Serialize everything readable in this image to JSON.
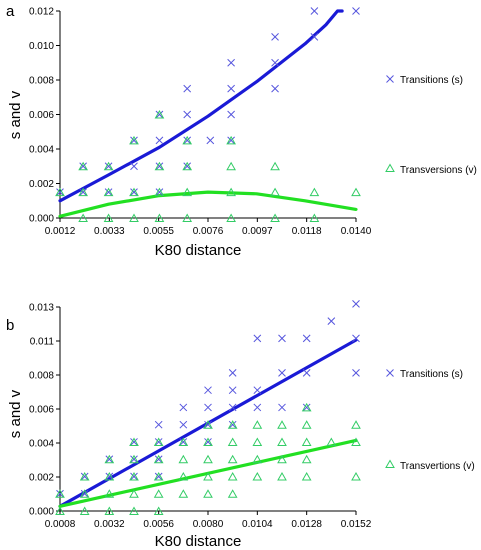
{
  "colors": {
    "transitions": "#5555dd",
    "transversions": "#33cc66",
    "fit_s": "#1a1ad6",
    "fit_v": "#22e022",
    "axis": "#000000"
  },
  "chart_data": [
    {
      "type": "scatter",
      "panel_label": "a",
      "xlabel": "K80 distance",
      "ylabel": "s and v",
      "xlim": [
        0.0012,
        0.014
      ],
      "ylim": [
        0.0,
        0.012
      ],
      "xticks": [
        "0.0012",
        "0.0033",
        "0.0055",
        "0.0076",
        "0.0097",
        "0.0118",
        "0.0140"
      ],
      "yticks": [
        "0.000",
        "0.002",
        "0.004",
        "0.006",
        "0.008",
        "0.010",
        "0.012"
      ],
      "legend_position": "right",
      "grid": false,
      "series": [
        {
          "name": "Transitions (s)",
          "marker": "x",
          "color_key": "transitions",
          "points": [
            [
              0.0012,
              0.0015
            ],
            [
              0.0022,
              0.003
            ],
            [
              0.0022,
              0.0015
            ],
            [
              0.0033,
              0.0015
            ],
            [
              0.0033,
              0.003
            ],
            [
              0.0044,
              0.0015
            ],
            [
              0.0044,
              0.003
            ],
            [
              0.0044,
              0.0045
            ],
            [
              0.0055,
              0.0045
            ],
            [
              0.0055,
              0.006
            ],
            [
              0.0055,
              0.003
            ],
            [
              0.0055,
              0.0015
            ],
            [
              0.0067,
              0.003
            ],
            [
              0.0067,
              0.0045
            ],
            [
              0.0067,
              0.006
            ],
            [
              0.0067,
              0.0075
            ],
            [
              0.0077,
              0.0045
            ],
            [
              0.0086,
              0.0045
            ],
            [
              0.0086,
              0.006
            ],
            [
              0.0086,
              0.0075
            ],
            [
              0.0086,
              0.009
            ],
            [
              0.0105,
              0.009
            ],
            [
              0.0105,
              0.0075
            ],
            [
              0.0105,
              0.0105
            ],
            [
              0.0122,
              0.0105
            ],
            [
              0.0122,
              0.012
            ],
            [
              0.014,
              0.012
            ]
          ]
        },
        {
          "name": "Transversions (v)",
          "marker": "triangle",
          "color_key": "transversions",
          "points": [
            [
              0.0012,
              0.0015
            ],
            [
              0.0022,
              0.0
            ],
            [
              0.0022,
              0.0015
            ],
            [
              0.0022,
              0.003
            ],
            [
              0.0033,
              0.0
            ],
            [
              0.0033,
              0.0015
            ],
            [
              0.0033,
              0.003
            ],
            [
              0.0044,
              0.0
            ],
            [
              0.0044,
              0.0015
            ],
            [
              0.0044,
              0.0045
            ],
            [
              0.0055,
              0.0
            ],
            [
              0.0055,
              0.0015
            ],
            [
              0.0055,
              0.003
            ],
            [
              0.0055,
              0.006
            ],
            [
              0.0067,
              0.0
            ],
            [
              0.0067,
              0.0015
            ],
            [
              0.0067,
              0.003
            ],
            [
              0.0067,
              0.0045
            ],
            [
              0.0086,
              0.0
            ],
            [
              0.0086,
              0.0015
            ],
            [
              0.0086,
              0.003
            ],
            [
              0.0086,
              0.0045
            ],
            [
              0.0105,
              0.0
            ],
            [
              0.0105,
              0.0015
            ],
            [
              0.0105,
              0.003
            ],
            [
              0.0122,
              0.0
            ],
            [
              0.0122,
              0.0015
            ],
            [
              0.014,
              0.0015
            ]
          ]
        }
      ],
      "fits": [
        {
          "color_key": "fit_s",
          "points": [
            [
              0.0012,
              0.001
            ],
            [
              0.0033,
              0.0025
            ],
            [
              0.0055,
              0.0041
            ],
            [
              0.0076,
              0.0059
            ],
            [
              0.0097,
              0.0079
            ],
            [
              0.0118,
              0.0101
            ],
            [
              0.0127,
              0.0112
            ],
            [
              0.0132,
              0.012
            ],
            [
              0.0134,
              0.012
            ]
          ]
        },
        {
          "color_key": "fit_v",
          "points": [
            [
              0.0012,
              0.0001
            ],
            [
              0.0033,
              0.0008
            ],
            [
              0.0055,
              0.0013
            ],
            [
              0.0076,
              0.0015
            ],
            [
              0.0097,
              0.0014
            ],
            [
              0.0118,
              0.001
            ],
            [
              0.014,
              0.0005
            ]
          ]
        }
      ]
    },
    {
      "type": "scatter",
      "panel_label": "b",
      "xlabel": "K80 distance",
      "ylabel": "s and v",
      "xlim": [
        0.0008,
        0.0152
      ],
      "ylim": [
        0.0,
        0.013
      ],
      "xticks": [
        "0.0008",
        "0.0032",
        "0.0056",
        "0.0080",
        "0.0104",
        "0.0128",
        "0.0152"
      ],
      "yticks": [
        "0.000",
        "0.002",
        "0.004",
        "0.006",
        "0.008",
        "0.011",
        "0.013"
      ],
      "legend_position": "right",
      "grid": false,
      "series": [
        {
          "name": "Transitions (s)",
          "marker": "x",
          "color_key": "transitions",
          "points": [
            [
              0.0008,
              0.0011
            ],
            [
              0.002,
              0.0011
            ],
            [
              0.002,
              0.0022
            ],
            [
              0.0032,
              0.0022
            ],
            [
              0.0032,
              0.0033
            ],
            [
              0.0044,
              0.0033
            ],
            [
              0.0044,
              0.0044
            ],
            [
              0.0044,
              0.0022
            ],
            [
              0.0056,
              0.0022
            ],
            [
              0.0056,
              0.0033
            ],
            [
              0.0056,
              0.0044
            ],
            [
              0.0056,
              0.0055
            ],
            [
              0.0068,
              0.0044
            ],
            [
              0.0068,
              0.0055
            ],
            [
              0.0068,
              0.0066
            ],
            [
              0.008,
              0.0044
            ],
            [
              0.008,
              0.0055
            ],
            [
              0.008,
              0.0066
            ],
            [
              0.008,
              0.0077
            ],
            [
              0.0092,
              0.0055
            ],
            [
              0.0092,
              0.0066
            ],
            [
              0.0092,
              0.0077
            ],
            [
              0.0092,
              0.0088
            ],
            [
              0.0104,
              0.0066
            ],
            [
              0.0104,
              0.0077
            ],
            [
              0.0104,
              0.011
            ],
            [
              0.0116,
              0.0066
            ],
            [
              0.0116,
              0.0088
            ],
            [
              0.0116,
              0.011
            ],
            [
              0.0128,
              0.0066
            ],
            [
              0.0128,
              0.0088
            ],
            [
              0.0128,
              0.011
            ],
            [
              0.014,
              0.0121
            ],
            [
              0.0152,
              0.0088
            ],
            [
              0.0152,
              0.011
            ],
            [
              0.0152,
              0.0132
            ]
          ]
        },
        {
          "name": "Transvertions (v)",
          "marker": "triangle",
          "color_key": "transversions",
          "points": [
            [
              0.0008,
              0.0
            ],
            [
              0.0008,
              0.0011
            ],
            [
              0.002,
              0.0
            ],
            [
              0.002,
              0.0011
            ],
            [
              0.002,
              0.0022
            ],
            [
              0.0032,
              0.0
            ],
            [
              0.0032,
              0.0011
            ],
            [
              0.0032,
              0.0022
            ],
            [
              0.0032,
              0.0033
            ],
            [
              0.0044,
              0.0
            ],
            [
              0.0044,
              0.0011
            ],
            [
              0.0044,
              0.0022
            ],
            [
              0.0044,
              0.0033
            ],
            [
              0.0044,
              0.0044
            ],
            [
              0.0056,
              0.0
            ],
            [
              0.0056,
              0.0011
            ],
            [
              0.0056,
              0.0022
            ],
            [
              0.0056,
              0.0033
            ],
            [
              0.0056,
              0.0044
            ],
            [
              0.0068,
              0.0011
            ],
            [
              0.0068,
              0.0022
            ],
            [
              0.0068,
              0.0033
            ],
            [
              0.0068,
              0.0044
            ],
            [
              0.008,
              0.0011
            ],
            [
              0.008,
              0.0022
            ],
            [
              0.008,
              0.0033
            ],
            [
              0.008,
              0.0044
            ],
            [
              0.008,
              0.0055
            ],
            [
              0.0092,
              0.0011
            ],
            [
              0.0092,
              0.0022
            ],
            [
              0.0092,
              0.0033
            ],
            [
              0.0092,
              0.0044
            ],
            [
              0.0092,
              0.0055
            ],
            [
              0.0104,
              0.0022
            ],
            [
              0.0104,
              0.0033
            ],
            [
              0.0104,
              0.0044
            ],
            [
              0.0104,
              0.0055
            ],
            [
              0.0116,
              0.0022
            ],
            [
              0.0116,
              0.0033
            ],
            [
              0.0116,
              0.0044
            ],
            [
              0.0116,
              0.0055
            ],
            [
              0.0128,
              0.0022
            ],
            [
              0.0128,
              0.0033
            ],
            [
              0.0128,
              0.0044
            ],
            [
              0.0128,
              0.0055
            ],
            [
              0.0128,
              0.0066
            ],
            [
              0.014,
              0.0044
            ],
            [
              0.0152,
              0.0022
            ],
            [
              0.0152,
              0.0044
            ],
            [
              0.0152,
              0.0055
            ]
          ]
        }
      ],
      "fits": [
        {
          "color_key": "fit_s",
          "points": [
            [
              0.0008,
              0.0003
            ],
            [
              0.0152,
              0.0109
            ]
          ]
        },
        {
          "color_key": "fit_v",
          "points": [
            [
              0.0008,
              0.0003
            ],
            [
              0.0152,
              0.0045
            ]
          ]
        }
      ]
    }
  ]
}
